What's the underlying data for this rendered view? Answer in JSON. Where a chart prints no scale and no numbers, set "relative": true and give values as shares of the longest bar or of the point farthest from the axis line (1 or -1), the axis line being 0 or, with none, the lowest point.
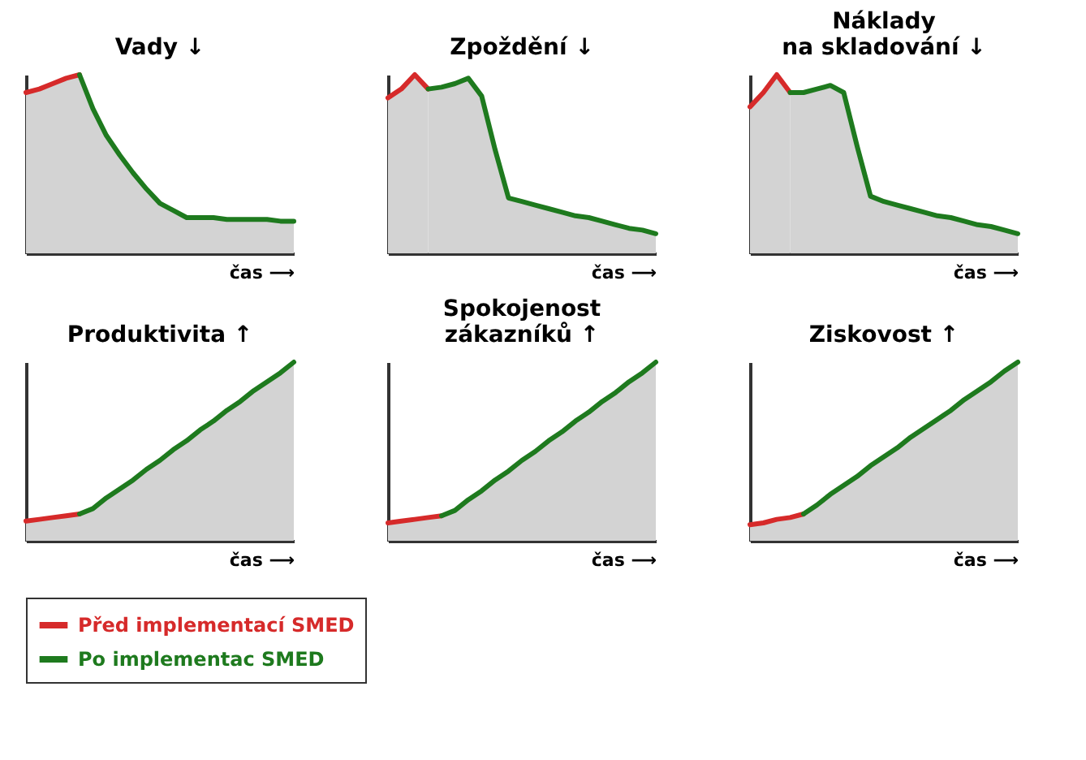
{
  "chart_data": [
    {
      "type": "area",
      "title": "Vady ↓",
      "xlabel": "čas ⟶",
      "relative": true,
      "categories": [
        null,
        null,
        null,
        null,
        null,
        null,
        null,
        null,
        null,
        null,
        null,
        null,
        null,
        null,
        null,
        null,
        null,
        null,
        null,
        null,
        null
      ],
      "series": [
        {
          "color": "#d62a2a",
          "values": [
            0.9,
            0.92,
            0.95,
            0.98,
            1.0,
            null,
            null,
            null,
            null,
            null,
            null,
            null,
            null,
            null,
            null,
            null,
            null,
            null,
            null,
            null,
            null
          ]
        },
        {
          "color": "#1e7a1e",
          "values": [
            null,
            null,
            null,
            null,
            1.0,
            0.81,
            0.66,
            0.55,
            0.45,
            0.36,
            0.28,
            0.24,
            0.2,
            0.2,
            0.2,
            0.19,
            0.19,
            0.19,
            0.19,
            0.18,
            0.18
          ]
        }
      ]
    },
    {
      "type": "area",
      "title": "Zpoždění ↓",
      "xlabel": "čas ⟶",
      "relative": true,
      "categories": [
        null,
        null,
        null,
        null,
        null,
        null,
        null,
        null,
        null,
        null,
        null,
        null,
        null,
        null,
        null,
        null,
        null,
        null,
        null,
        null,
        null
      ],
      "series": [
        {
          "color": "#d62a2a",
          "values": [
            0.87,
            0.92,
            1.0,
            0.92,
            null,
            null,
            null,
            null,
            null,
            null,
            null,
            null,
            null,
            null,
            null,
            null,
            null,
            null,
            null,
            null,
            null
          ]
        },
        {
          "color": "#1e7a1e",
          "values": [
            null,
            null,
            null,
            0.92,
            0.93,
            0.95,
            0.98,
            0.88,
            0.58,
            0.31,
            0.29,
            0.27,
            0.25,
            0.23,
            0.21,
            0.2,
            0.18,
            0.16,
            0.14,
            0.13,
            0.11
          ]
        }
      ]
    },
    {
      "type": "area",
      "title": "Náklady\nna skladování ↓",
      "xlabel": "čas ⟶",
      "relative": true,
      "categories": [
        null,
        null,
        null,
        null,
        null,
        null,
        null,
        null,
        null,
        null,
        null,
        null,
        null,
        null,
        null,
        null,
        null,
        null,
        null,
        null,
        null
      ],
      "series": [
        {
          "color": "#d62a2a",
          "values": [
            0.82,
            0.9,
            1.0,
            0.9,
            null,
            null,
            null,
            null,
            null,
            null,
            null,
            null,
            null,
            null,
            null,
            null,
            null,
            null,
            null,
            null,
            null
          ]
        },
        {
          "color": "#1e7a1e",
          "values": [
            null,
            null,
            null,
            0.9,
            0.9,
            0.92,
            0.94,
            0.9,
            0.6,
            0.32,
            0.29,
            0.27,
            0.25,
            0.23,
            0.21,
            0.2,
            0.18,
            0.16,
            0.15,
            0.13,
            0.11
          ]
        }
      ]
    },
    {
      "type": "area",
      "title": "Produktivita ↑",
      "xlabel": "čas ⟶",
      "relative": true,
      "legend": "bottom",
      "categories": [
        null,
        null,
        null,
        null,
        null,
        null,
        null,
        null,
        null,
        null,
        null,
        null,
        null,
        null,
        null,
        null,
        null,
        null,
        null,
        null,
        null
      ],
      "series": [
        {
          "name": "Před implementací SMED",
          "color": "#d62a2a",
          "values": [
            0.11,
            0.12,
            0.13,
            0.14,
            0.15,
            null,
            null,
            null,
            null,
            null,
            null,
            null,
            null,
            null,
            null,
            null,
            null,
            null,
            null,
            null,
            null
          ]
        },
        {
          "name": "Po implementac SMED",
          "color": "#1e7a1e",
          "values": [
            null,
            null,
            null,
            null,
            0.15,
            0.18,
            0.24,
            0.29,
            0.34,
            0.4,
            0.45,
            0.51,
            0.56,
            0.62,
            0.67,
            0.73,
            0.78,
            0.84,
            0.89,
            0.94,
            1.0
          ]
        }
      ]
    },
    {
      "type": "area",
      "title": "Spokojenost\nzákazníků ↑",
      "xlabel": "čas ⟶",
      "relative": true,
      "categories": [
        null,
        null,
        null,
        null,
        null,
        null,
        null,
        null,
        null,
        null,
        null,
        null,
        null,
        null,
        null,
        null,
        null,
        null,
        null,
        null,
        null
      ],
      "series": [
        {
          "color": "#d62a2a",
          "values": [
            0.1,
            0.11,
            0.12,
            0.13,
            0.14,
            null,
            null,
            null,
            null,
            null,
            null,
            null,
            null,
            null,
            null,
            null,
            null,
            null,
            null,
            null,
            null
          ]
        },
        {
          "color": "#1e7a1e",
          "values": [
            null,
            null,
            null,
            null,
            0.14,
            0.17,
            0.23,
            0.28,
            0.34,
            0.39,
            0.45,
            0.5,
            0.56,
            0.61,
            0.67,
            0.72,
            0.78,
            0.83,
            0.89,
            0.94,
            1.0
          ]
        }
      ]
    },
    {
      "type": "area",
      "title": "Ziskovost ↑",
      "xlabel": "čas ⟶",
      "relative": true,
      "categories": [
        null,
        null,
        null,
        null,
        null,
        null,
        null,
        null,
        null,
        null,
        null,
        null,
        null,
        null,
        null,
        null,
        null,
        null,
        null,
        null,
        null
      ],
      "series": [
        {
          "color": "#d62a2a",
          "values": [
            0.09,
            0.1,
            0.12,
            0.13,
            0.15,
            null,
            null,
            null,
            null,
            null,
            null,
            null,
            null,
            null,
            null,
            null,
            null,
            null,
            null,
            null,
            null
          ]
        },
        {
          "color": "#1e7a1e",
          "values": [
            null,
            null,
            null,
            null,
            0.15,
            0.2,
            0.26,
            0.31,
            0.36,
            0.42,
            0.47,
            0.52,
            0.58,
            0.63,
            0.68,
            0.73,
            0.79,
            0.84,
            0.89,
            0.95,
            1.0
          ]
        }
      ]
    }
  ]
}
